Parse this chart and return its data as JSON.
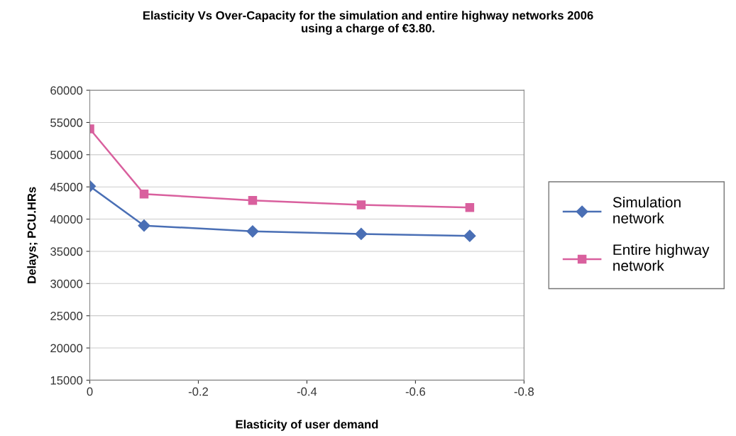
{
  "chart_data": {
    "type": "line",
    "title": "Elasticity Vs Over-Capacity for the simulation and entire highway networks 2006\nusing a charge of €3.80.",
    "xlabel": "Elasticity of user demand",
    "ylabel": "Delays; PCU.HRs",
    "x": [
      0,
      -0.1,
      -0.3,
      -0.5,
      -0.7
    ],
    "series": [
      {
        "name": "Simulation\nnetwork",
        "color": "#4a6fb5",
        "marker": "diamond",
        "values": [
          45100,
          39000,
          38100,
          37700,
          37400
        ]
      },
      {
        "name": "Entire highway\nnetwork",
        "color": "#d9609e",
        "marker": "square",
        "values": [
          54000,
          43900,
          42900,
          42200,
          41800
        ]
      }
    ],
    "xlim": [
      0,
      -0.8
    ],
    "xticks": [
      0,
      -0.2,
      -0.4,
      -0.6,
      -0.8
    ],
    "ylim": [
      15000,
      60000
    ],
    "yticks": [
      15000,
      20000,
      25000,
      30000,
      35000,
      40000,
      45000,
      50000,
      55000,
      60000
    ],
    "grid": "y",
    "legend": "right",
    "line_style": "solid"
  }
}
